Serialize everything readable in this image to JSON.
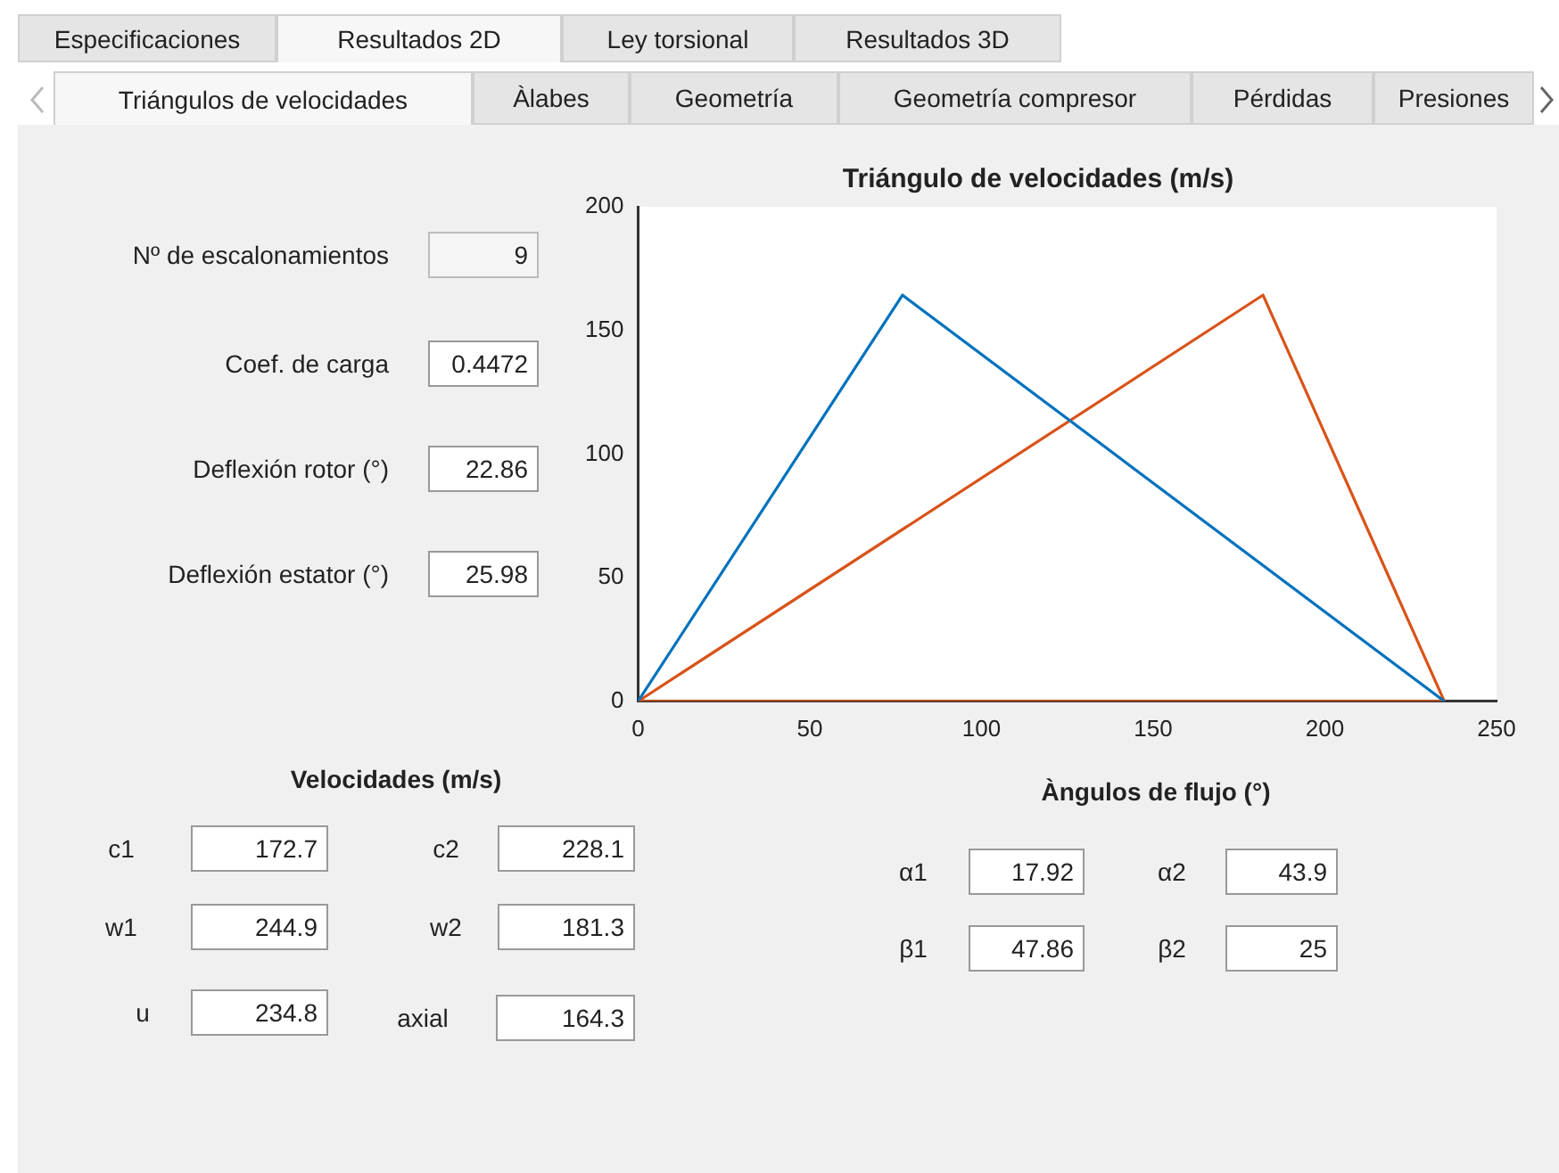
{
  "chart_data": {
    "type": "line",
    "title": "Triángulo de velocidades (m/s)",
    "series": [
      {
        "color": "#0072bd",
        "x": [
          0,
          77,
          234.8
        ],
        "values": [
          0,
          164.3,
          0
        ]
      },
      {
        "color": "#d95319",
        "x": [
          0,
          182,
          234.8
        ],
        "values": [
          0,
          164.3,
          0
        ]
      },
      {
        "color": "#d95319",
        "x": [
          0,
          234.8
        ],
        "values": [
          0,
          0
        ]
      }
    ],
    "xlim": [
      0,
      250
    ],
    "xticks": [
      0,
      50,
      100,
      150,
      200,
      250
    ],
    "ylim": [
      0,
      200
    ],
    "yticks": [
      0,
      50,
      100,
      150,
      200
    ],
    "grid": false,
    "legend": false,
    "marker": "none",
    "line_style": "solid",
    "annotations": [
      "Especificaciones",
      "Resultados 2D",
      "Ley torsional",
      "Resultados 3D",
      "Triángulos de velocidades",
      "Àlabes",
      "Geometría",
      "Geometría compresor",
      "Pérdidas",
      "Presiones",
      "Nº de escalonamientos",
      "9",
      "Coef. de carga",
      "0.4472",
      "Deflexión rotor (°)",
      "22.86",
      "Deflexión estator (°)",
      "25.98",
      "Velocidades (m/s)",
      "c1",
      "172.7",
      "c2",
      "228.1",
      "w1",
      "244.9",
      "w2",
      "181.3",
      "u",
      "234.8",
      "axial",
      "164.3",
      "Àngulos de flujo (°)",
      "α1",
      "17.92",
      "α2",
      "43.9",
      "β1",
      "47.86",
      "β2",
      "25"
    ]
  }
}
